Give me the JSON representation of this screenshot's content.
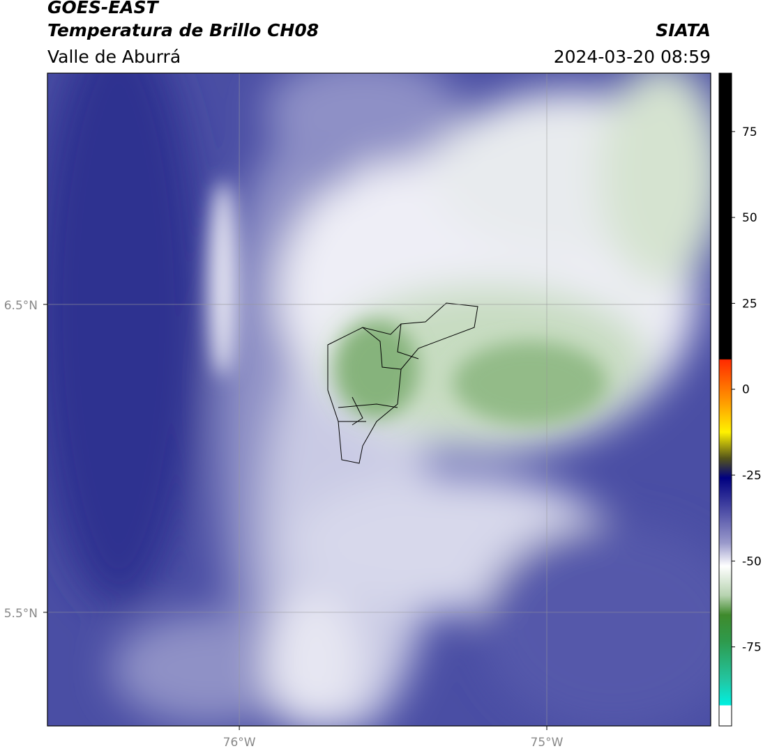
{
  "chart_data": {
    "type": "map",
    "title": "GOES-EAST",
    "subtitle": "Temperatura de Brillo CH08",
    "region": "Valle de Aburrá",
    "source": "SIATA",
    "timestamp": "2024-03-20 08:59",
    "xlim": [
      -76.624,
      -74.467
    ],
    "ylim": [
      5.131,
      7.251
    ],
    "xticks": [
      {
        "value": -76,
        "label": "76°W"
      },
      {
        "value": -75,
        "label": "75°W"
      }
    ],
    "yticks": [
      {
        "value": 6.5,
        "label": "6.5°N"
      },
      {
        "value": 5.5,
        "label": "5.5°N"
      }
    ],
    "grid": true,
    "colorbar": {
      "lim": [
        -98,
        92
      ],
      "ticks": [
        75,
        50,
        25,
        0,
        -25,
        -50,
        -75
      ]
    }
  }
}
